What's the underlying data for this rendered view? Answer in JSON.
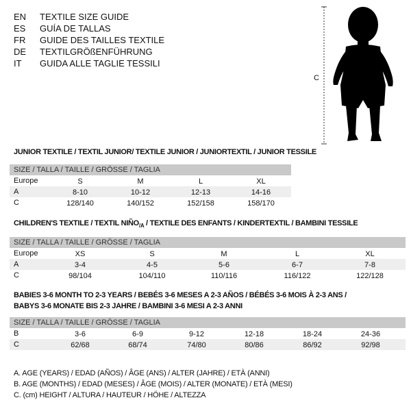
{
  "languages": [
    {
      "code": "EN",
      "text": "TEXTILE SIZE GUIDE"
    },
    {
      "code": "ES",
      "text": "GUÍA DE TALLAS"
    },
    {
      "code": "FR",
      "text": "GUIDE DES TAILLES TEXTILE"
    },
    {
      "code": "DE",
      "text": "TEXTILGRÖßENFÜHRUNG"
    },
    {
      "code": "IT",
      "text": "GUIDA ALLE TAGLIE TESSILI"
    }
  ],
  "figure": {
    "height_marker": "C"
  },
  "junior": {
    "title": "JUNIOR TEXTILE / TEXTIL JUNIOR/ TEXTILE JUNIOR / JUNIORTEXTIL / JUNIOR TESSILE",
    "header": "SIZE / TALLA / TAILLE / GRÖSSE / TAGLIA",
    "rows": [
      {
        "label": "Europe",
        "values": [
          "S",
          "M",
          "L",
          "XL"
        ]
      },
      {
        "label": "A",
        "values": [
          "8-10",
          "10-12",
          "12-13",
          "14-16"
        ]
      },
      {
        "label": "C",
        "values": [
          "128/140",
          "140/152",
          "152/158",
          "158/170"
        ]
      }
    ]
  },
  "children": {
    "title": "CHILDREN'S TEXTILE / TEXTIL NIÑO",
    "title_sub": "/A",
    "title_rest": " / TEXTILE DES ENFANTS / KINDERTEXTIL / BAMBINI TESSILE",
    "header": "SIZE / TALLA / TAILLE / GRÖSSE / TAGLIA",
    "rows": [
      {
        "label": "Europe",
        "values": [
          "XS",
          "S",
          "M",
          "L",
          "XL"
        ]
      },
      {
        "label": "A",
        "values": [
          "3-4",
          "4-5",
          "5-6",
          "6-7",
          "7-8"
        ]
      },
      {
        "label": "C",
        "values": [
          "98/104",
          "104/110",
          "110/116",
          "116/122",
          "122/128"
        ]
      }
    ]
  },
  "babies": {
    "title_line1": "BABIES 3-6 MONTH TO 2-3 YEARS / BEBÉS 3-6 MESES A 2-3 AÑOS / BÉBÉS 3-6 MOIS À 2-3 ANS /",
    "title_line2": "BABYS 3-6 MONATE BIS 2-3 JAHRE / BAMBINI 3-6 MESI A 2-3 ANNI",
    "header": "SIZE / TALLA / TAILLE / GRÖSSE / TAGLIA",
    "rows": [
      {
        "label": "B",
        "values": [
          "3-6",
          "6-9",
          "9-12",
          "12-18",
          "18-24",
          "24-36"
        ]
      },
      {
        "label": "C",
        "values": [
          "62/68",
          "68/74",
          "74/80",
          "80/86",
          "86/92",
          "92/98"
        ]
      }
    ]
  },
  "legend": [
    "A. AGE (YEARS) / EDAD (AÑOS) / ÂGE (ANS) / ALTER (JAHRE) / ETÀ (ANNI)",
    "B. AGE (MONTHS) / EDAD (MESES) / ÂGE (MOIS) / ALTER (MONATE) / ETÀ (MESI)",
    "C. (cm) HEIGHT / ALTURA / HAUTEUR / HÖHE / ALTEZZA"
  ]
}
